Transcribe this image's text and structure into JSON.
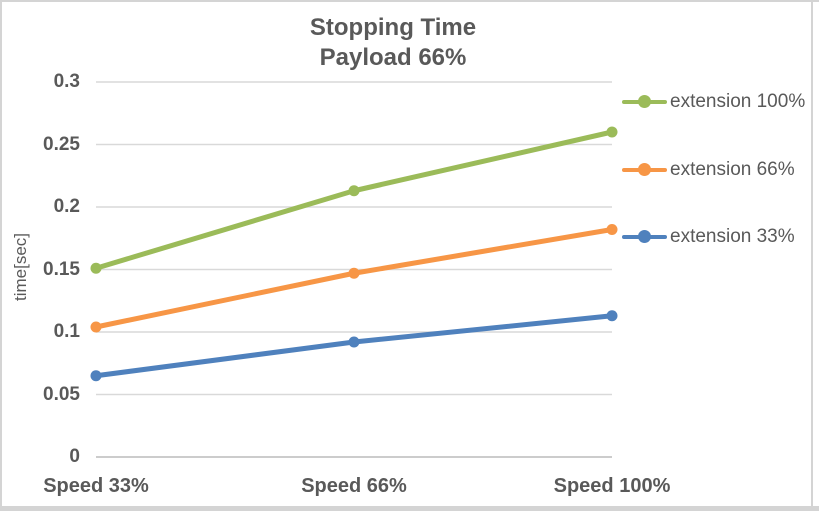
{
  "chart_data": {
    "type": "line",
    "title_lines": [
      "Stopping Time",
      "Payload 66%"
    ],
    "title": "Stopping Time Payload 66%",
    "xlabel": "",
    "ylabel": "time[sec]",
    "categories": [
      "Speed 33%",
      "Speed 66%",
      "Speed 100%"
    ],
    "series": [
      {
        "name": "extension 100%",
        "color": "#9BBB59",
        "values": [
          0.151,
          0.213,
          0.26
        ]
      },
      {
        "name": "extension 66%",
        "color": "#F79646",
        "values": [
          0.104,
          0.147,
          0.182
        ]
      },
      {
        "name": "extension 33%",
        "color": "#4F81BD",
        "values": [
          0.065,
          0.092,
          0.113
        ]
      }
    ],
    "ylim": [
      0,
      0.3
    ],
    "y_ticks": [
      {
        "value": 0.3,
        "label": "0.3"
      },
      {
        "value": 0.25,
        "label": "0.25"
      },
      {
        "value": 0.2,
        "label": "0.2"
      },
      {
        "value": 0.15,
        "label": "0.15"
      },
      {
        "value": 0.1,
        "label": "0.1"
      },
      {
        "value": 0.05,
        "label": "0.05"
      },
      {
        "value": 0,
        "label": "0"
      }
    ],
    "grid": true,
    "legend_position": "right",
    "marker": "circle"
  },
  "style_colors": {
    "text": "#595959",
    "gridline": "#D9D9D9",
    "axis_line": "#CCCCCC",
    "frame_border": "#D4D4D4",
    "background": "#FFFFFF"
  }
}
